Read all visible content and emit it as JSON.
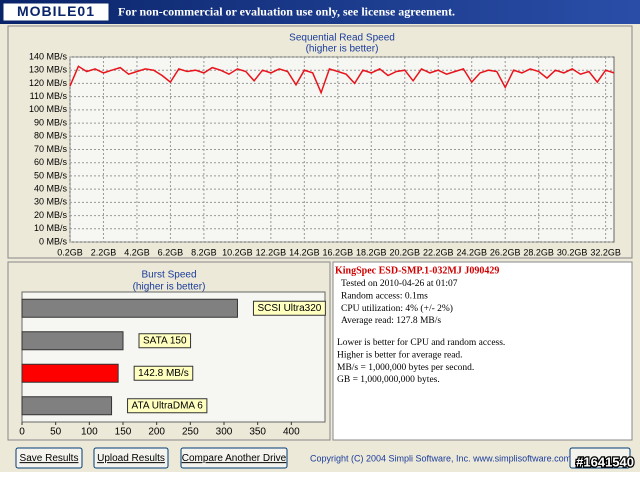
{
  "header": {
    "logo": "MOBILE01",
    "notice": "For non-commercial or evaluation use only, see license agreement."
  },
  "chart_data": [
    {
      "type": "line",
      "title": "Sequential Read Speed",
      "subtitle": "(higher is better)",
      "color": "#e8141c",
      "grid": true,
      "x": [
        0.2,
        0.7,
        1.2,
        1.7,
        2.2,
        2.7,
        3.2,
        3.7,
        4.2,
        4.7,
        5.2,
        5.7,
        6.2,
        6.7,
        7.2,
        7.7,
        8.2,
        8.7,
        9.2,
        9.7,
        10.2,
        10.7,
        11.2,
        11.7,
        12.2,
        12.7,
        13.2,
        13.7,
        14.2,
        14.7,
        15.2,
        15.7,
        16.2,
        16.7,
        17.2,
        17.7,
        18.2,
        18.7,
        19.2,
        19.7,
        20.2,
        20.7,
        21.2,
        21.7,
        22.2,
        22.7,
        23.2,
        23.7,
        24.2,
        24.7,
        25.2,
        25.7,
        26.2,
        26.7,
        27.2,
        27.7,
        28.2,
        28.7,
        29.2,
        29.7,
        30.2,
        30.7,
        31.2,
        31.7,
        32.2,
        32.7
      ],
      "values": [
        118,
        133,
        129,
        131,
        128,
        130,
        132,
        127,
        129,
        131,
        130,
        126,
        121,
        131,
        129,
        130,
        128,
        132,
        130,
        127,
        131,
        129,
        122,
        130,
        128,
        131,
        129,
        119,
        130,
        128,
        113,
        131,
        129,
        127,
        120,
        130,
        128,
        131,
        126,
        129,
        130,
        122,
        131,
        128,
        130,
        127,
        129,
        131,
        121,
        128,
        130,
        129,
        117,
        130,
        128,
        131,
        129,
        124,
        130,
        128,
        131,
        127,
        129,
        121,
        130,
        128
      ],
      "xlim": [
        0.2,
        32.7
      ],
      "ylim": [
        0,
        140
      ],
      "xticks": [
        {
          "value": 0.2,
          "label": "0.2GB"
        },
        {
          "value": 2.2,
          "label": "2.2GB"
        },
        {
          "value": 4.2,
          "label": "4.2GB"
        },
        {
          "value": 6.2,
          "label": "6.2GB"
        },
        {
          "value": 8.2,
          "label": "8.2GB"
        },
        {
          "value": 10.2,
          "label": "10.2GB"
        },
        {
          "value": 12.2,
          "label": "12.2GB"
        },
        {
          "value": 14.2,
          "label": "14.2GB"
        },
        {
          "value": 16.2,
          "label": "16.2GB"
        },
        {
          "value": 18.2,
          "label": "18.2GB"
        },
        {
          "value": 20.2,
          "label": "20.2GB"
        },
        {
          "value": 22.2,
          "label": "22.2GB"
        },
        {
          "value": 24.2,
          "label": "24.2GB"
        },
        {
          "value": 26.2,
          "label": "26.2GB"
        },
        {
          "value": 28.2,
          "label": "28.2GB"
        },
        {
          "value": 30.2,
          "label": "30.2GB"
        },
        {
          "value": 32.2,
          "label": "32.2GB"
        }
      ],
      "yticks": [
        {
          "value": 0,
          "label": "0 MB/s"
        },
        {
          "value": 10,
          "label": "10 MB/s"
        },
        {
          "value": 20,
          "label": "20 MB/s"
        },
        {
          "value": 30,
          "label": "30 MB/s"
        },
        {
          "value": 40,
          "label": "40 MB/s"
        },
        {
          "value": 50,
          "label": "50 MB/s"
        },
        {
          "value": 60,
          "label": "60 MB/s"
        },
        {
          "value": 70,
          "label": "70 MB/s"
        },
        {
          "value": 80,
          "label": "80 MB/s"
        },
        {
          "value": 90,
          "label": "90 MB/s"
        },
        {
          "value": 100,
          "label": "100 MB/s"
        },
        {
          "value": 110,
          "label": "110 MB/s"
        },
        {
          "value": 120,
          "label": "120 MB/s"
        },
        {
          "value": 130,
          "label": "130 MB/s"
        },
        {
          "value": 140,
          "label": "140 MB/s"
        }
      ]
    },
    {
      "type": "hbar",
      "title": "Burst Speed",
      "subtitle": "(higher is better)",
      "categories": [
        "SCSI Ultra320",
        "SATA 150",
        null,
        "ATA UltraDMA 6"
      ],
      "values": [
        320,
        150,
        142.8,
        133
      ],
      "value_labels": [
        null,
        null,
        "142.8 MB/s",
        null
      ],
      "colors": [
        "#808080",
        "#808080",
        "#ff0000",
        "#808080"
      ],
      "xlim": [
        0,
        450
      ],
      "xticks": [
        0,
        50,
        100,
        150,
        200,
        250,
        300,
        350,
        400
      ]
    }
  ],
  "info": {
    "drive": "KingSpec ESD-SMP.1-032MJ J090429",
    "results": [
      "Tested on 2010-04-26 at 01:07",
      "Random access: 0.1ms",
      "CPU utilization: 4% (+/- 2%)",
      "Average read: 127.8 MB/s"
    ],
    "notes": [
      "Lower is better for CPU and random access.",
      "Higher is better for average read.",
      "MB/s = 1,000,000 bytes per second.",
      "GB = 1,000,000,000 bytes."
    ]
  },
  "buttons": [
    "Save Results",
    "Upload Results",
    "Compare Another Drive"
  ],
  "copyright": "Copyright (C) 2004 Simpli Software, Inc. www.simplisoftware.com",
  "watermark": "#1641540"
}
